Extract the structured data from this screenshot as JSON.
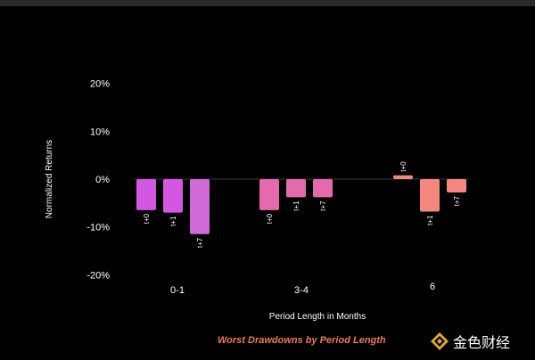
{
  "chart_data": {
    "type": "bar",
    "groups": [
      {
        "label": "0-1",
        "bars": [
          {
            "tag": "t+0",
            "value": -6.5,
            "color": "#d357e0"
          },
          {
            "tag": "t+1",
            "value": -7.0,
            "color": "#d357e0"
          },
          {
            "tag": "t+7",
            "value": -11.5,
            "color": "#d06ad8"
          }
        ]
      },
      {
        "label": "3-4",
        "bars": [
          {
            "tag": "t+0",
            "value": -6.5,
            "color": "#e56aab"
          },
          {
            "tag": "t+1",
            "value": -3.8,
            "color": "#e56aab"
          },
          {
            "tag": "t+7",
            "value": -3.8,
            "color": "#e56aab"
          }
        ]
      },
      {
        "label": "6",
        "bars": [
          {
            "tag": "t+0",
            "value": 0.8,
            "color": "#f4887f"
          },
          {
            "tag": "t+1",
            "value": -6.8,
            "color": "#f4887f"
          },
          {
            "tag": "t+7",
            "value": -2.8,
            "color": "#f4887f"
          }
        ]
      }
    ],
    "yticks": [
      "20%",
      "10%",
      "0%",
      "-10%",
      "-20%"
    ],
    "ytick_values": [
      20,
      10,
      0,
      -10,
      -20
    ],
    "ylim": [
      -20,
      20
    ],
    "xlabel": "Period Length in Months",
    "ylabel": "Normalized Returns",
    "grid": false
  },
  "caption": "Worst Drawdowns by Period Length",
  "watermark": {
    "text": "金色财经",
    "logo_icon": "golden-finance-logo"
  },
  "colors": {
    "background": "#000000",
    "text": "#ffffff",
    "caption": "#f07a4e",
    "zero_line": "#3a3a3a"
  }
}
